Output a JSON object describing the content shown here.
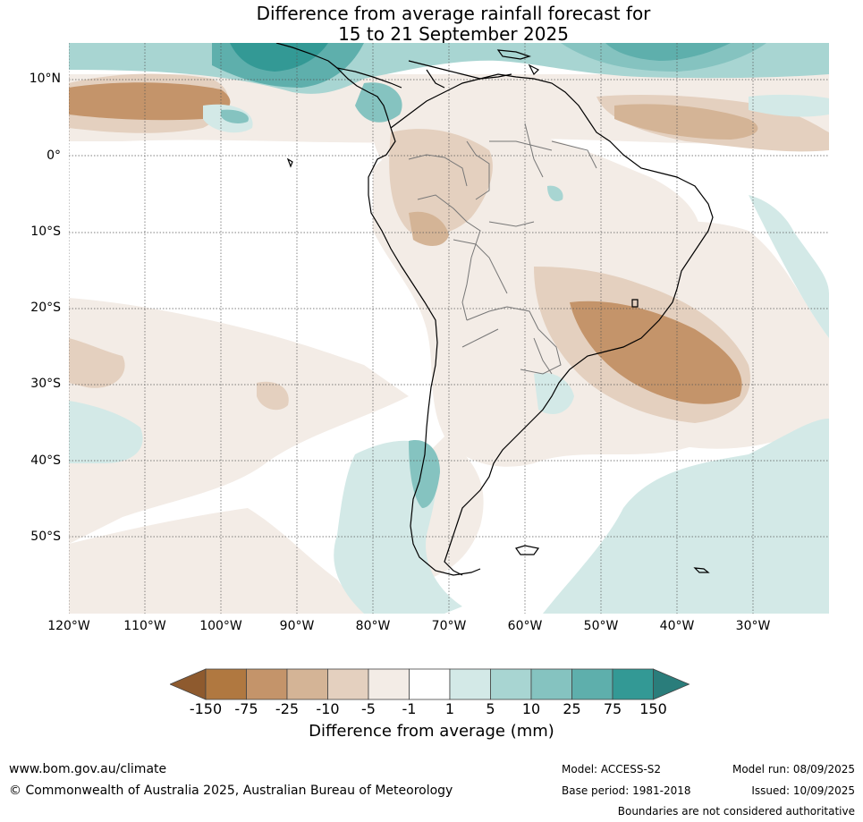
{
  "title": {
    "line1": "Difference from average rainfall forecast for",
    "line2": "15 to 21 September 2025"
  },
  "map": {
    "lat_labels": [
      "10°N",
      "0°",
      "10°S",
      "20°S",
      "30°S",
      "40°S",
      "50°S"
    ],
    "lon_labels": [
      "120°W",
      "110°W",
      "100°W",
      "90°W",
      "80°W",
      "70°W",
      "60°W",
      "50°W",
      "40°W",
      "30°W"
    ]
  },
  "colorbar": {
    "ticks": [
      "-150",
      "-75",
      "-25",
      "-10",
      "-5",
      "-1",
      "1",
      "5",
      "10",
      "25",
      "75",
      "150"
    ],
    "colors": [
      "#8e5a2e",
      "#b07840",
      "#c4946a",
      "#d4b496",
      "#e4d0bf",
      "#f3ece6",
      "#ffffff",
      "#d3e9e7",
      "#a8d5d2",
      "#85c3c0",
      "#5eafac",
      "#339995",
      "#2a7d7b"
    ],
    "label": "Difference from average (mm)"
  },
  "footer": {
    "website": "www.bom.gov.au/climate",
    "copyright": "© Commonwealth of Australia 2025, Australian Bureau of Meteorology",
    "model": "Model: ACCESS-S2",
    "base_period": "Base period: 1981-2018",
    "model_run": "Model run: 08/09/2025",
    "issued": "Issued: 10/09/2025",
    "disclaimer": "Boundaries are not considered authoritative"
  }
}
